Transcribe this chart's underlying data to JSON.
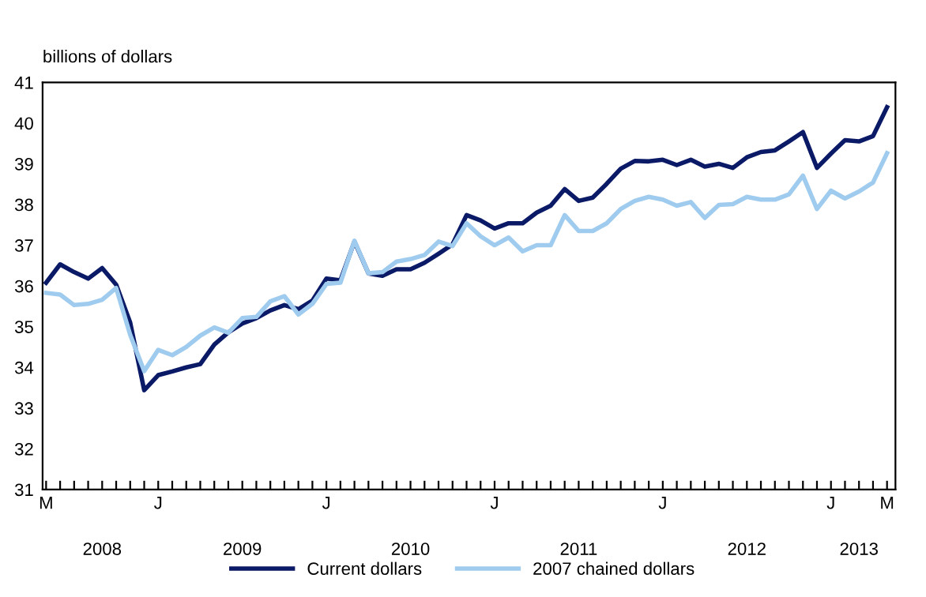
{
  "chart_data": {
    "type": "line",
    "ylabel": "billions of dollars",
    "categories": [
      "M",
      null,
      null,
      null,
      null,
      null,
      null,
      null,
      "J",
      null,
      null,
      null,
      null,
      null,
      null,
      null,
      null,
      null,
      null,
      null,
      "J",
      null,
      null,
      null,
      null,
      null,
      null,
      null,
      null,
      null,
      null,
      null,
      "J",
      null,
      null,
      null,
      null,
      null,
      null,
      null,
      null,
      null,
      null,
      null,
      "J",
      null,
      null,
      null,
      null,
      null,
      null,
      null,
      null,
      null,
      null,
      null,
      "J",
      null,
      null,
      null,
      "M"
    ],
    "annotations": [
      "2008",
      "2009",
      "2010",
      "2011",
      "2012",
      "2013"
    ],
    "series": [
      {
        "name": "Current dollars",
        "color": "#0b1a66",
        "values": [
          36.08,
          36.53,
          36.34,
          36.18,
          36.44,
          36.03,
          35.1,
          33.44,
          33.81,
          33.9,
          34.0,
          34.08,
          34.56,
          34.86,
          35.08,
          35.21,
          35.4,
          35.53,
          35.43,
          35.64,
          36.18,
          36.14,
          37.09,
          36.31,
          36.25,
          36.41,
          36.41,
          36.57,
          36.79,
          37.02,
          37.74,
          37.61,
          37.41,
          37.54,
          37.54,
          37.8,
          37.97,
          38.38,
          38.09,
          38.17,
          38.51,
          38.88,
          39.07,
          39.06,
          39.1,
          38.97,
          39.1,
          38.93,
          39.0,
          38.9,
          39.16,
          39.29,
          39.33,
          39.55,
          39.78,
          38.9,
          39.25,
          39.58,
          39.55,
          39.68,
          40.39
        ]
      },
      {
        "name": "2007 chained dollars",
        "color": "#9fcbef",
        "values": [
          35.83,
          35.79,
          35.53,
          35.56,
          35.66,
          35.95,
          34.8,
          33.91,
          34.43,
          34.3,
          34.5,
          34.78,
          34.98,
          34.85,
          35.21,
          35.24,
          35.62,
          35.75,
          35.3,
          35.56,
          36.05,
          36.08,
          37.11,
          36.31,
          36.34,
          36.6,
          36.66,
          36.76,
          37.09,
          36.98,
          37.54,
          37.22,
          37.0,
          37.19,
          36.85,
          37.0,
          37.0,
          37.74,
          37.35,
          37.35,
          37.54,
          37.89,
          38.09,
          38.19,
          38.12,
          37.97,
          38.06,
          37.67,
          37.99,
          38.01,
          38.19,
          38.12,
          38.12,
          38.25,
          38.71,
          37.89,
          38.34,
          38.15,
          38.32,
          38.54,
          39.26
        ]
      }
    ],
    "ylim": [
      31,
      41
    ],
    "yticks": [
      31,
      32,
      33,
      34,
      35,
      36,
      37,
      38,
      39,
      40,
      41
    ],
    "grid": false,
    "legend": "bottom",
    "marker": "none",
    "line_style": "solid"
  }
}
